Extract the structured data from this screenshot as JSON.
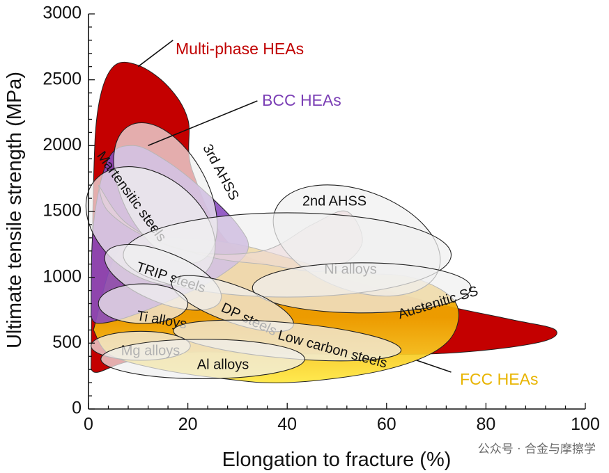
{
  "chart_data": {
    "type": "area",
    "xlabel": "Elongation to fracture (%)",
    "ylabel": "Ultimate tensile strength (MPa)",
    "xlim": [
      0,
      100
    ],
    "ylim": [
      0,
      3000
    ],
    "x_ticks": [
      0,
      20,
      40,
      60,
      80,
      100
    ],
    "y_ticks": [
      0,
      500,
      1000,
      1500,
      2000,
      2500,
      3000
    ],
    "grid": false,
    "colors": {
      "multi_phase": "#c40000",
      "bcc": "#8a4cc0",
      "fcc": "#f0a800",
      "fcc_light": "#ffe840",
      "ellipse": "#f0f0f0"
    },
    "regions": [
      {
        "key": "multi",
        "name": "Multi-phase HEAs",
        "outline": [
          [
            0.5,
            300
          ],
          [
            1,
            1700
          ],
          [
            2,
            2300
          ],
          [
            5,
            2600
          ],
          [
            10,
            2610
          ],
          [
            16,
            2450
          ],
          [
            20,
            2200
          ],
          [
            21,
            1800
          ],
          [
            30,
            1200
          ],
          [
            50,
            1000
          ],
          [
            70,
            800
          ],
          [
            85,
            680
          ],
          [
            94,
            600
          ],
          [
            90,
            500
          ],
          [
            70,
            420
          ],
          [
            40,
            420
          ],
          [
            20,
            430
          ],
          [
            8,
            360
          ],
          [
            2,
            280
          ],
          [
            0.5,
            300
          ]
        ]
      },
      {
        "key": "fcc",
        "name": "FCC HEAs",
        "outline": [
          [
            1,
            600
          ],
          [
            6,
            1200
          ],
          [
            15,
            1300
          ],
          [
            30,
            1250
          ],
          [
            50,
            1050
          ],
          [
            65,
            1000
          ],
          [
            74,
            800
          ],
          [
            72,
            500
          ],
          [
            60,
            300
          ],
          [
            40,
            200
          ],
          [
            25,
            240
          ],
          [
            12,
            320
          ],
          [
            4,
            420
          ],
          [
            1,
            600
          ]
        ]
      },
      {
        "key": "bcc",
        "name": "BCC HEAs",
        "outline": [
          [
            0.5,
            700
          ],
          [
            1,
            1400
          ],
          [
            4,
            1900
          ],
          [
            9,
            2000
          ],
          [
            15,
            1900
          ],
          [
            22,
            1700
          ],
          [
            30,
            1400
          ],
          [
            32,
            1200
          ],
          [
            26,
            1000
          ],
          [
            18,
            850
          ],
          [
            8,
            700
          ],
          [
            2,
            650
          ],
          [
            0.5,
            700
          ]
        ]
      },
      {
        "key": "pink",
        "name": "",
        "outline": [
          [
            2,
            1700
          ],
          [
            8,
            1400
          ],
          [
            20,
            1200
          ],
          [
            35,
            1200
          ],
          [
            45,
            1400
          ],
          [
            52,
            1500
          ],
          [
            55,
            1250
          ],
          [
            48,
            1050
          ],
          [
            35,
            1100
          ],
          [
            25,
            1150
          ],
          [
            12,
            1300
          ],
          [
            4,
            1500
          ],
          [
            2,
            1700
          ]
        ]
      }
    ],
    "ellipses": [
      {
        "key": "3rd-ahss",
        "label": "3rd AHSS",
        "cx": 15.5,
        "cy": 1640,
        "rx": 8.5,
        "ry": 580,
        "rotate": -28
      },
      {
        "key": "martensitic",
        "label": "Martensitic steels",
        "cx": 12.5,
        "cy": 1390,
        "rx": 14.5,
        "ry": 380,
        "rotate": 38
      },
      {
        "key": "2nd-ahss",
        "label": "2nd AHSS",
        "cx": 54,
        "cy": 1280,
        "rx": 17.5,
        "ry": 380,
        "rotate": 20
      },
      {
        "key": "ni-alloys",
        "label": "Ni alloys",
        "cx": 40,
        "cy": 1170,
        "rx": 33,
        "ry": 320,
        "rotate": 0
      },
      {
        "key": "austenitic",
        "label": "Austenitic SS",
        "cx": 55,
        "cy": 920,
        "rx": 22,
        "ry": 190,
        "rotate": 0
      },
      {
        "key": "trip",
        "label": "TRIP steels",
        "cx": 15,
        "cy": 1000,
        "rx": 12.5,
        "ry": 190,
        "rotate": 22
      },
      {
        "key": "dp",
        "label": "DP steels",
        "cx": 29,
        "cy": 800,
        "rx": 13,
        "ry": 140,
        "rotate": 20
      },
      {
        "key": "ti-alloys",
        "label": "Ti alloys",
        "cx": 11,
        "cy": 800,
        "rx": 9,
        "ry": 150,
        "rotate": 0
      },
      {
        "key": "low-carbon",
        "label": "Low carbon steels",
        "cx": 40,
        "cy": 520,
        "rx": 23,
        "ry": 135,
        "rotate": 5
      },
      {
        "key": "mg-alloys",
        "label": "Mg alloys",
        "cx": 10.5,
        "cy": 480,
        "rx": 10,
        "ry": 110,
        "rotate": 0
      },
      {
        "key": "al-alloys",
        "label": "Al alloys",
        "cx": 23,
        "cy": 380,
        "rx": 20.5,
        "ry": 150,
        "rotate": 0
      }
    ],
    "callouts": [
      {
        "key": "multi",
        "label": "Multi-phase HEAs",
        "color": "#c00000",
        "line": [
          [
            10,
            2600
          ],
          [
            17,
            2800
          ]
        ]
      },
      {
        "key": "bcc",
        "label": "BCC HEAs",
        "color": "#7b3fb5",
        "line": [
          [
            12,
            2000
          ],
          [
            34,
            2340
          ]
        ]
      },
      {
        "key": "fcc",
        "label": "FCC HEAs",
        "color": "#e8b400",
        "line": [
          [
            66,
            370
          ],
          [
            73,
            280
          ]
        ]
      }
    ]
  },
  "watermark": "公众号 · 合金与摩擦学"
}
